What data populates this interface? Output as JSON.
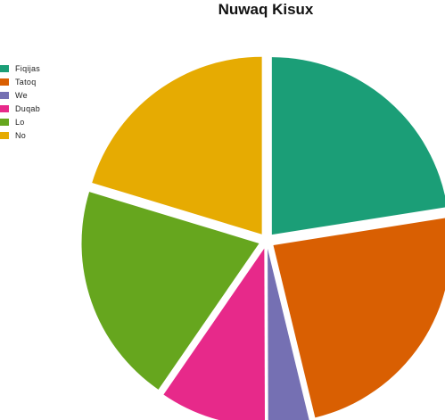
{
  "chart_data": {
    "type": "pie",
    "title": "Nuwaq Kisux",
    "legend_position": "left",
    "exploded": true,
    "slices": [
      {
        "label": "Fiqijas",
        "value": 20.5,
        "color": "#1b9e77"
      },
      {
        "label": "Tatoq",
        "value": 21.6,
        "color": "#d95f02"
      },
      {
        "label": "We",
        "value": 3.4,
        "color": "#7570b3"
      },
      {
        "label": "Duqab",
        "value": 8.8,
        "color": "#e7298a"
      },
      {
        "label": "Lo",
        "value": 18.3,
        "color": "#66a61e"
      },
      {
        "label": "No",
        "value": 18.5,
        "color": "#e6ab02"
      }
    ]
  }
}
